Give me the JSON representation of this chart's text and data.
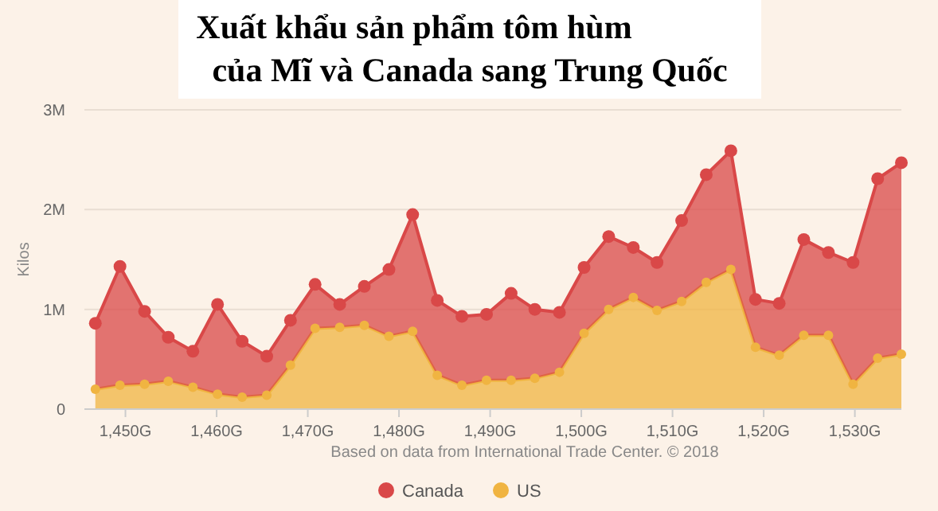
{
  "chart_data": {
    "type": "area",
    "title": "Xuất khẩu sản phẩm tôm hùm\ncủa Mĩ và Canada sang Trung Quốc",
    "ylabel": "Kilos",
    "annotations": [
      "Based on data from International Trade Center. © 2018"
    ],
    "x": [
      1446.7,
      1449.4,
      1452.1,
      1454.7,
      1457.4,
      1460.1,
      1462.8,
      1465.5,
      1468.1,
      1470.8,
      1473.5,
      1476.2,
      1478.9,
      1481.5,
      1484.2,
      1486.9,
      1489.6,
      1492.3,
      1494.9,
      1497.6,
      1500.3,
      1503.0,
      1505.7,
      1508.3,
      1511.0,
      1513.7,
      1516.4,
      1519.1,
      1521.7,
      1524.4,
      1527.1,
      1529.8,
      1532.5,
      1535.1
    ],
    "stacked": true,
    "marker": "circle",
    "grid": "y",
    "legend": "bottom",
    "xlim": [
      1445.5,
      1535.1
    ],
    "xticks": [
      {
        "value": 1450,
        "label": "1,450G"
      },
      {
        "value": 1460,
        "label": "1,460G"
      },
      {
        "value": 1470,
        "label": "1,470G"
      },
      {
        "value": 1480,
        "label": "1,480G"
      },
      {
        "value": 1490,
        "label": "1,490G"
      },
      {
        "value": 1500,
        "label": "1,500G"
      },
      {
        "value": 1510,
        "label": "1,510G"
      },
      {
        "value": 1520,
        "label": "1,520G"
      },
      {
        "value": 1530,
        "label": "1,530G"
      }
    ],
    "ylim": [
      0,
      3000000
    ],
    "yticks": [
      0,
      {
        "value": 1000000,
        "label": "1M"
      },
      {
        "value": 2000000,
        "label": "2M"
      },
      {
        "value": 3000000,
        "label": "3M"
      }
    ],
    "series": [
      {
        "name": "US",
        "color": "#f0b441",
        "values": [
          200000,
          240000,
          250000,
          280000,
          220000,
          150000,
          120000,
          140000,
          440000,
          810000,
          820000,
          840000,
          730000,
          780000,
          340000,
          240000,
          290000,
          290000,
          310000,
          370000,
          760000,
          1000000,
          1120000,
          990000,
          1080000,
          1270000,
          1400000,
          620000,
          540000,
          740000,
          740000,
          250000,
          510000,
          550000
        ]
      },
      {
        "name": "Canada",
        "color": "#d94848",
        "values": [
          660000,
          1190000,
          730000,
          440000,
          360000,
          900000,
          560000,
          390000,
          450000,
          440000,
          230000,
          390000,
          670000,
          1170000,
          750000,
          690000,
          660000,
          870000,
          690000,
          600000,
          660000,
          730000,
          500000,
          480000,
          810000,
          1080000,
          1190000,
          480000,
          520000,
          960000,
          830000,
          1220000,
          1800000,
          1920000
        ]
      }
    ]
  }
}
